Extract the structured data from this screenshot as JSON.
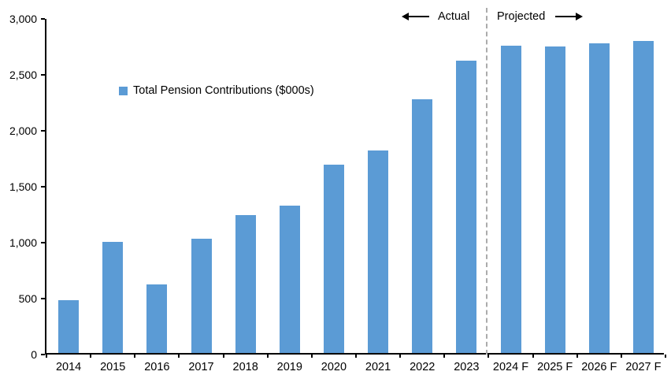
{
  "chart_data": {
    "type": "bar",
    "categories": [
      "2014",
      "2015",
      "2016",
      "2017",
      "2018",
      "2019",
      "2020",
      "2021",
      "2022",
      "2023",
      "2024 F",
      "2025 F",
      "2026 F",
      "2027 F"
    ],
    "values": [
      470,
      990,
      610,
      1020,
      1230,
      1320,
      1680,
      1810,
      2270,
      2610,
      2750,
      2740,
      2770,
      2790
    ],
    "legend": "Total Pension Contributions ($000s)",
    "legend_position": "inside-upper-left",
    "ylim": [
      0,
      3000
    ],
    "ytick_step": 500,
    "ytick_labels": [
      "0",
      "500",
      "1,000",
      "1,500",
      "2,000",
      "2,500",
      "3,000"
    ],
    "grid": false,
    "bar_color": "#5B9BD5",
    "axis_color": "#000000",
    "divider_after": "2023",
    "divider_color": "#ABABAB",
    "annotations": {
      "actual": "Actual",
      "projected": "Projected"
    }
  }
}
